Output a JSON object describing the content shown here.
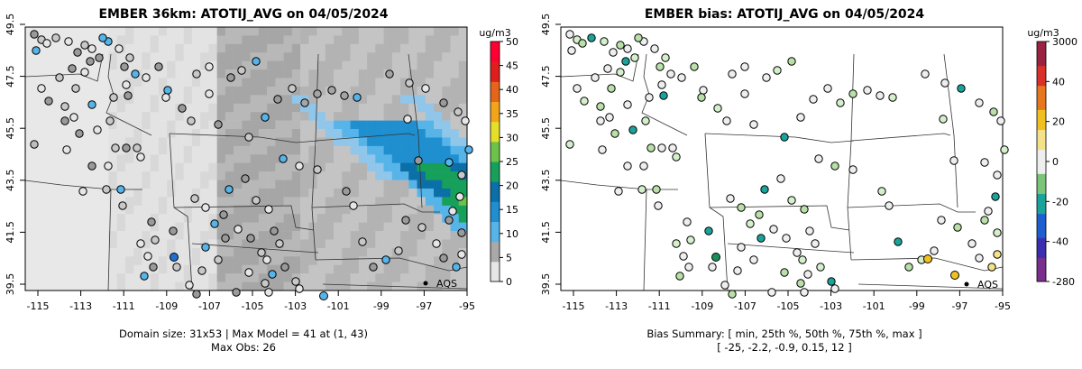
{
  "left_map": {
    "title": "EMBER 36km: ATOTIJ_AVG on 04/05/2024",
    "x_ticks": [
      "-115",
      "-113",
      "-111",
      "-109",
      "-107",
      "-105",
      "-103",
      "-101",
      "-99",
      "-97",
      "-95"
    ],
    "y_ticks": [
      "39.5",
      "41.5",
      "43.5",
      "45.5",
      "47.5",
      "49.5"
    ],
    "colorbar_unit": "ug/m3",
    "colorbar_ticks": [
      "0",
      "5",
      "10",
      "15",
      "20",
      "25",
      "30",
      "35",
      "40",
      "45",
      "50"
    ],
    "site_label": "AQS",
    "caption_line1": "Domain size: 31x53 | Max Model = 41 at (1, 43)",
    "caption_line2": "Max Obs: 26"
  },
  "right_map": {
    "title": "EMBER bias: ATOTIJ_AVG on 04/05/2024",
    "x_ticks": [
      "-115",
      "-113",
      "-111",
      "-109",
      "-107",
      "-105",
      "-103",
      "-101",
      "-99",
      "-97",
      "-95"
    ],
    "y_ticks": [
      "39.5",
      "41.5",
      "43.5",
      "45.5",
      "47.5",
      "49.5"
    ],
    "colorbar_unit": "ug/m3",
    "colorbar_ticks": [
      "-280",
      "-40",
      "-20",
      "0",
      "20",
      "40",
      "3000"
    ],
    "site_label": "AQS",
    "caption_line1": "Bias Summary: [ min, 25th %, 50th %, 75th %, max ]",
    "caption_line2": "[ -25,   -2.2,   -0.9,   0.15,   12 ]"
  },
  "colors": {
    "concentration_scale": [
      "#e6e6e6",
      "#a9a9a9",
      "#56b4e9",
      "#1f8fd0",
      "#0b6fa8",
      "#17a05a",
      "#6cc24a",
      "#e6df2a",
      "#f2a51a",
      "#e5651a",
      "#e01e1e",
      "#ff0033"
    ],
    "bias_scale": [
      "#7a2f8f",
      "#3b2fb0",
      "#1d5fd0",
      "#1aa39a",
      "#7cc47a",
      "#eeeeee",
      "#f4e28a",
      "#f0c020",
      "#e7771f",
      "#d9302a",
      "#9a2340"
    ]
  }
}
